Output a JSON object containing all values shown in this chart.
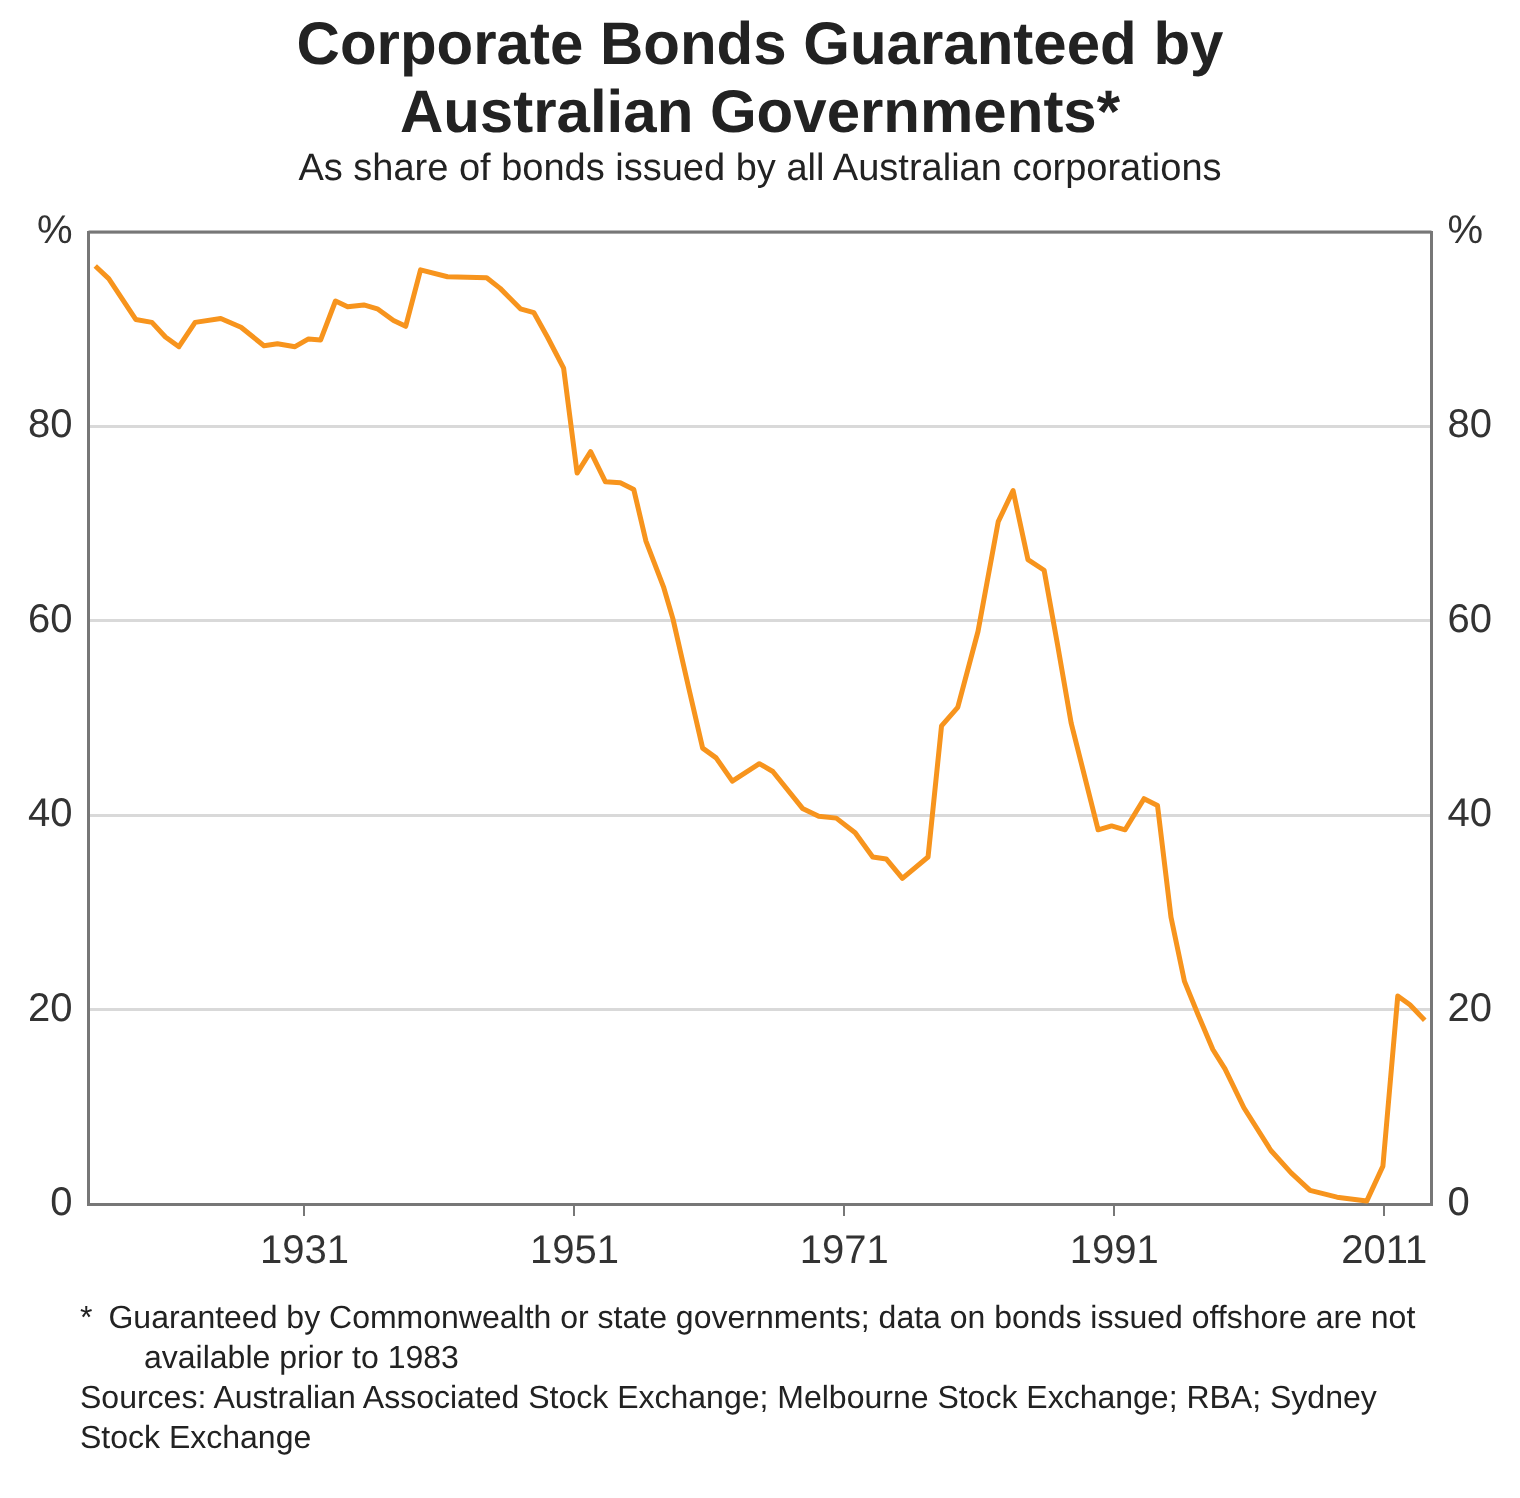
{
  "chart_data": {
    "type": "line",
    "title": "Corporate Bonds Guaranteed by Australian Governments*",
    "subtitle": "As share of bonds issued by all Australian corporations",
    "x": [
      1915.5,
      1916.5,
      1918.5,
      1919.7,
      1920.7,
      1921.7,
      1922.9,
      1924.8,
      1926.3,
      1928.0,
      1929.0,
      1930.3,
      1931.3,
      1932.2,
      1933.3,
      1934.2,
      1935.4,
      1936.4,
      1937.6,
      1938.5,
      1939.6,
      1941.6,
      1944.5,
      1945.5,
      1947.0,
      1948.0,
      1949.0,
      1950.2,
      1951.2,
      1952.2,
      1953.3,
      1954.4,
      1955.4,
      1956.3,
      1957.6,
      1958.3,
      1959.5,
      1960.5,
      1961.5,
      1962.7,
      1964.7,
      1965.7,
      1967.9,
      1969.1,
      1970.4,
      1971.8,
      1973.1,
      1974.1,
      1975.3,
      1977.2,
      1978.2,
      1979.4,
      1980.9,
      1982.4,
      1983.5,
      1984.6,
      1985.8,
      1986.8,
      1987.8,
      1989.8,
      1990.8,
      1991.8,
      1993.2,
      1994.2,
      1995.2,
      1996.2,
      1997.2,
      1998.3,
      1999.2,
      2000.6,
      2002.6,
      2004.1,
      2005.5,
      2007.5,
      2009.7,
      2010.9,
      2012.0,
      2012.9,
      2014.0
    ],
    "series": [
      {
        "color": "#f7941d",
        "values": [
          96.5,
          95.2,
          91,
          90.7,
          89.2,
          88.2,
          90.7,
          91.1,
          90.2,
          88.3,
          88.5,
          88.2,
          89,
          88.9,
          92.9,
          92.3,
          92.5,
          92.1,
          90.9,
          90.3,
          96.1,
          95.4,
          95.3,
          94.2,
          92.1,
          91.7,
          89.2,
          86,
          75.2,
          77.4,
          74.3,
          74.2,
          73.5,
          68.2,
          63.5,
          60.2,
          52.9,
          46.9,
          45.9,
          43.5,
          45.3,
          44.5,
          40.7,
          39.9,
          39.7,
          38.2,
          35.7,
          35.5,
          33.5,
          35.7,
          49.2,
          51.1,
          58.9,
          70.2,
          73.4,
          66.3,
          65.2,
          57.5,
          49.5,
          38.5,
          38.9,
          38.5,
          41.7,
          41,
          29.5,
          22.9,
          19.5,
          15.9,
          13.9,
          9.9,
          5.5,
          3.2,
          1.4,
          0.7,
          0.3,
          3.9,
          21.4,
          20.5,
          18.9
        ]
      }
    ],
    "xlim": [
      1915,
      2014.5
    ],
    "xticks": [
      1931,
      1951,
      1971,
      1991,
      2011
    ],
    "ylim": [
      0,
      100
    ],
    "yticks": [
      0,
      20,
      40,
      60,
      80,
      {
        "value": 100,
        "label": "%"
      }
    ],
    "y2lim": [
      0,
      100
    ],
    "y2ticks": [
      0,
      20,
      40,
      60,
      80,
      {
        "value": 100,
        "label": "%"
      }
    ],
    "grid": "y",
    "marker": "none",
    "line_style": "solid",
    "annotations": [
      "*\tGuaranteed by Commonwealth or state governments; data on bonds issued offshore are not available prior to 1983",
      "Sources: Australian Associated Stock Exchange; Melbourne Stock Exchange; RBA; Sydney Stock Exchange"
    ]
  }
}
